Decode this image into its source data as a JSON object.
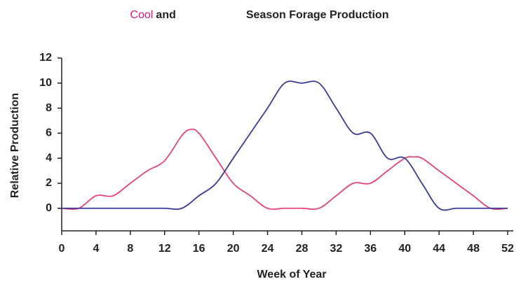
{
  "chart_data": {
    "type": "line",
    "title": [
      {
        "text": "Cool",
        "color": "#e0157f"
      },
      {
        "text": "and",
        "color": "#222222"
      },
      {
        "text": "Season Forage Production",
        "color": "#222222"
      }
    ],
    "x_label": "Week of Year",
    "y_label": "Relative Production",
    "series": [
      {
        "color": "#e8447a",
        "x": [
          0,
          2,
          4,
          6,
          8,
          10,
          12,
          14,
          15,
          16,
          18,
          20,
          22,
          24,
          26,
          28,
          30,
          32,
          34,
          36,
          38,
          40,
          41,
          42,
          44,
          46,
          48,
          50,
          52
        ],
        "values": [
          0,
          0,
          1,
          1,
          2,
          3,
          3.8,
          5.8,
          6.3,
          6,
          4,
          2,
          1,
          0,
          0,
          0,
          0,
          1,
          2,
          2,
          3,
          4,
          4.1,
          4,
          3,
          2,
          1,
          0,
          0
        ]
      },
      {
        "color": "#3a3a9c",
        "x": [
          0,
          2,
          4,
          6,
          8,
          10,
          12,
          14,
          16,
          18,
          20,
          22,
          24,
          26,
          28,
          30,
          32,
          34,
          36,
          38,
          40,
          42,
          44,
          46,
          48,
          50,
          52
        ],
        "values": [
          0,
          0,
          0,
          0,
          0,
          0,
          0,
          0,
          1,
          2,
          4,
          6,
          8,
          10,
          10,
          10,
          8,
          6,
          6,
          4,
          4,
          2,
          0,
          0,
          0,
          0,
          0
        ]
      }
    ],
    "xlim": [
      0,
      52
    ],
    "xticks": [
      0,
      4,
      8,
      12,
      16,
      20,
      24,
      28,
      32,
      36,
      40,
      44,
      48,
      52
    ],
    "ylim": [
      -1.8,
      12
    ],
    "yticks": [
      0,
      2,
      4,
      6,
      8,
      10,
      12
    ]
  }
}
